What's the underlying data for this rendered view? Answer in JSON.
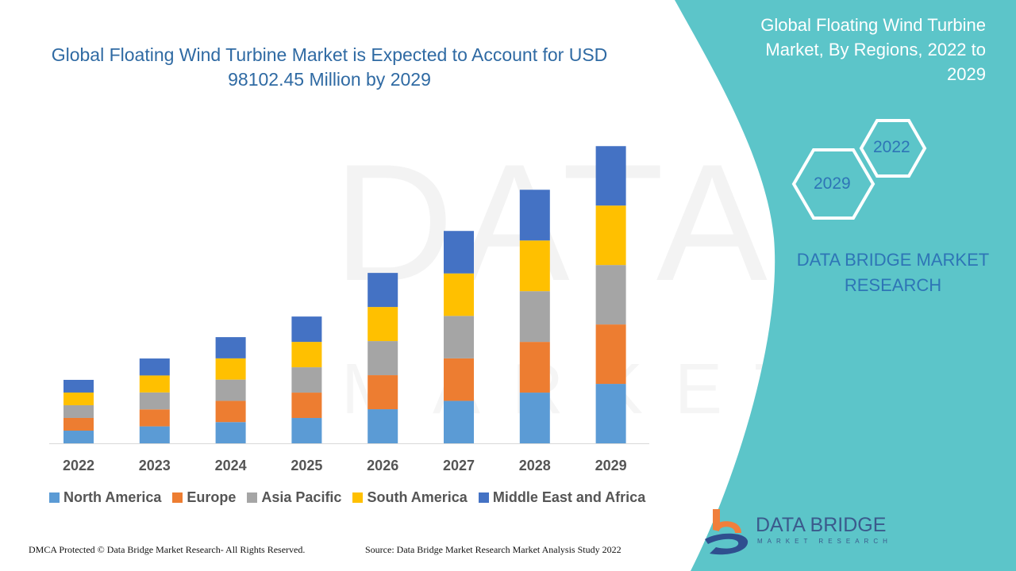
{
  "title": "Global Floating Wind Turbine Market is Expected to Account for USD 98102.45 Million by 2029",
  "right_panel": {
    "title": "Global Floating Wind Turbine Market, By Regions, 2022 to 2029",
    "hex_years": [
      "2022",
      "2029"
    ],
    "brand": "DATA BRIDGE MARKET RESEARCH",
    "color": "#5cc5c9"
  },
  "watermark": {
    "line1": "DATA BRIDGE",
    "line2": "MARKET RESEARCH"
  },
  "logo": {
    "name": "DATA BRIDGE",
    "sub": "MARKET RESEARCH"
  },
  "footer": {
    "left": "DMCA Protected © Data Bridge Market Research- All Rights Reserved.",
    "right": "Source: Data Bridge Market Research Market Analysis Study 2022"
  },
  "chart_data": {
    "type": "bar",
    "stacked": true,
    "title": "Global Floating Wind Turbine Market is Expected to Account for USD 98102.45 Million by 2029",
    "xlabel": "",
    "ylabel": "",
    "ylim": [
      0,
      100000
    ],
    "grid": false,
    "legend_position": "bottom",
    "categories": [
      "2022",
      "2023",
      "2024",
      "2025",
      "2026",
      "2027",
      "2028",
      "2029"
    ],
    "series": [
      {
        "name": "North America",
        "color": "#5b9bd5",
        "values": [
          4190,
          5600,
          7010,
          8370,
          11250,
          14020,
          16740,
          19620
        ]
      },
      {
        "name": "Europe",
        "color": "#ed7d31",
        "values": [
          4190,
          5600,
          7010,
          8370,
          11250,
          14020,
          16740,
          19620
        ]
      },
      {
        "name": "Asia Pacific",
        "color": "#a5a5a5",
        "values": [
          4190,
          5600,
          7010,
          8370,
          11250,
          14020,
          16740,
          19620
        ]
      },
      {
        "name": "South America",
        "color": "#ffc000",
        "values": [
          4190,
          5600,
          7010,
          8370,
          11250,
          14020,
          16740,
          19620
        ]
      },
      {
        "name": "Middle East and Africa",
        "color": "#4472c4",
        "values": [
          4190,
          5600,
          7010,
          8370,
          11250,
          14020,
          16740,
          19620
        ]
      }
    ]
  }
}
